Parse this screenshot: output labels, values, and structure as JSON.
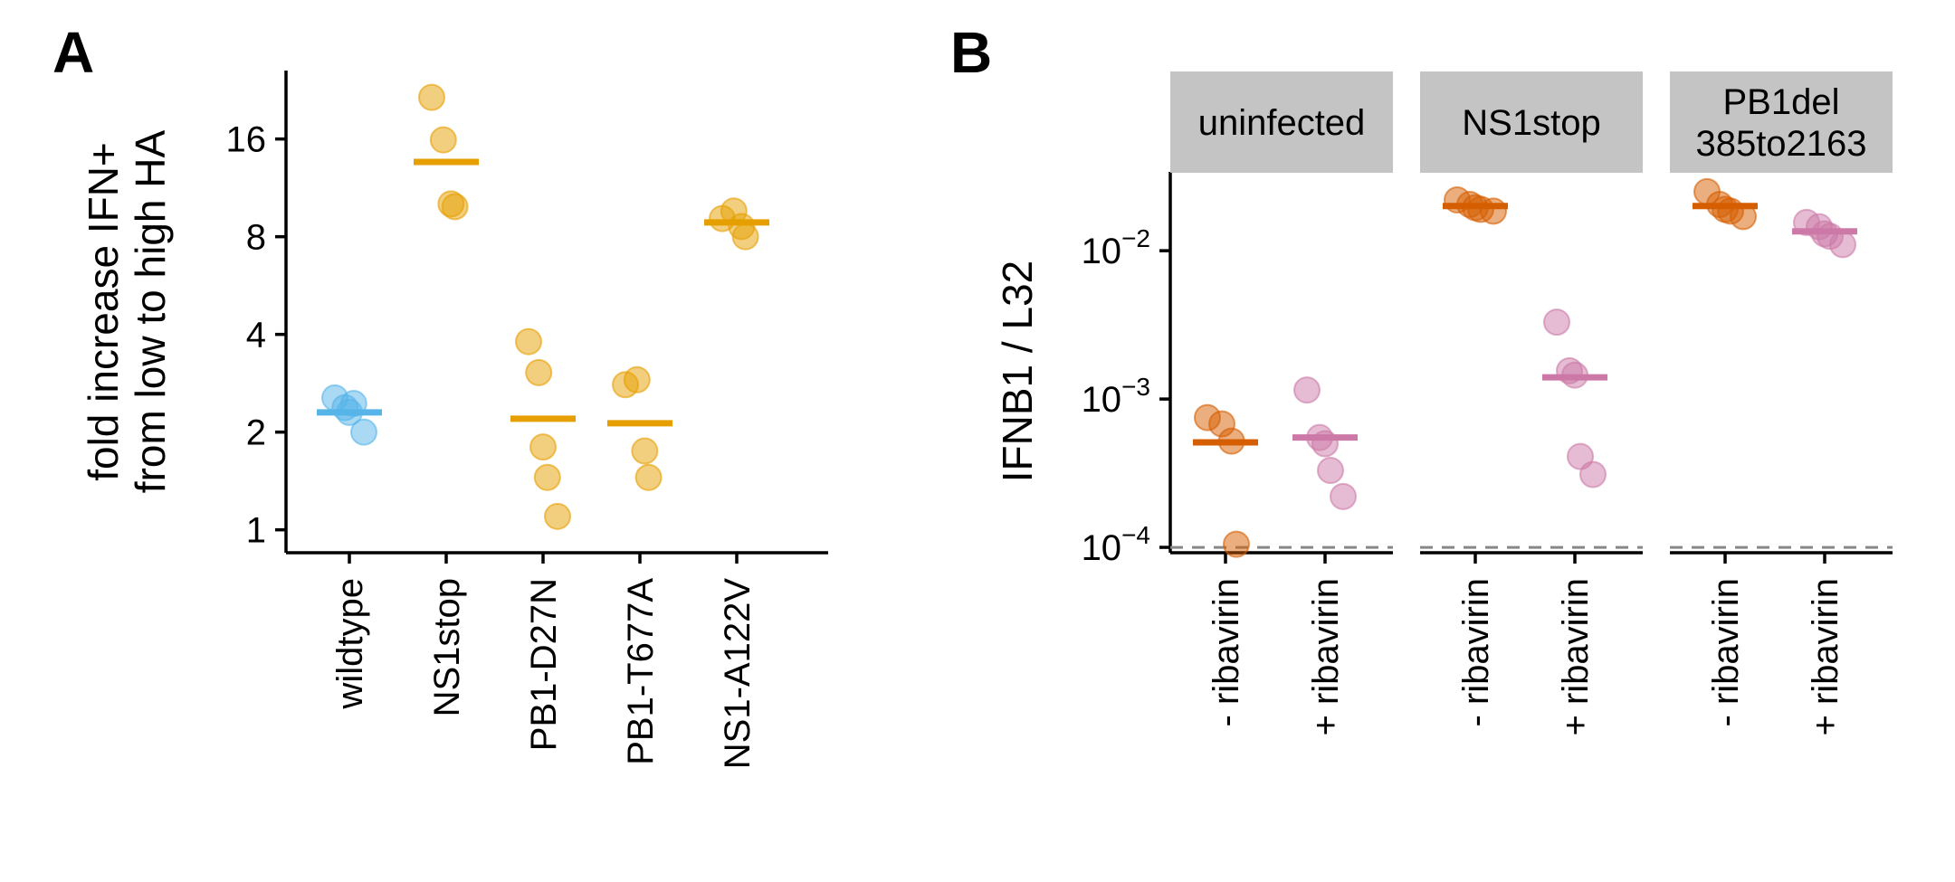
{
  "panels": {
    "A": {
      "letter": "A"
    },
    "B": {
      "letter": "B"
    }
  },
  "colors": {
    "wildtype": "#56B4E9",
    "mutant": "#E69F00",
    "minus_ribavirin": "#D55E00",
    "plus_ribavirin": "#CC79A7",
    "strip_bg": "#C4C4C4",
    "dashed_limit": "#888888"
  },
  "chart_data": [
    {
      "panel": "A",
      "type": "scatter",
      "ylabel": "fold increase IFN+\nfrom low to high HA",
      "yscale": "log2",
      "ylim": [
        0.85,
        26
      ],
      "yticks": [
        1,
        2,
        4,
        8,
        16
      ],
      "ytick_labels": [
        "1",
        "2",
        "4",
        "8",
        "16"
      ],
      "categories": [
        "wildtype",
        "NS1stop",
        "PB1-D27N",
        "PB1-T677A",
        "NS1-A122V"
      ],
      "points": [
        {
          "category": "wildtype",
          "values": [
            2.55,
            2.38,
            2.3,
            2.45,
            2.0
          ],
          "mean": 2.3
        },
        {
          "category": "NS1stop",
          "values": [
            21.5,
            15.9,
            10.1,
            9.9
          ],
          "mean": 13.6
        },
        {
          "category": "PB1-D27N",
          "values": [
            3.8,
            3.05,
            1.8,
            1.45,
            1.1
          ],
          "mean": 2.2
        },
        {
          "category": "PB1-T677A",
          "values": [
            2.8,
            2.9,
            1.75,
            1.45
          ],
          "mean": 2.13
        },
        {
          "category": "NS1-A122V",
          "values": [
            9.1,
            9.6,
            8.6,
            8.0
          ],
          "mean": 8.85
        }
      ]
    },
    {
      "panel": "B",
      "type": "scatter",
      "ylabel": "IFNB1 / L32",
      "yscale": "log10",
      "ylim": [
        9.2e-05,
        0.034
      ],
      "yticks": [
        0.0001,
        0.001,
        0.01
      ],
      "ytick_labels": [
        {
          "base": "10",
          "exp": "−4"
        },
        {
          "base": "10",
          "exp": "−3"
        },
        {
          "base": "10",
          "exp": "−2"
        }
      ],
      "detection_limit": 0.0001,
      "categories": [
        "- ribavirin",
        "+ ribavirin"
      ],
      "facets": [
        {
          "strip": [
            "uninfected"
          ],
          "groups": [
            {
              "category": "- ribavirin",
              "values": [
                0.00075,
                0.00068,
                0.00052,
                0.000105
              ],
              "mean": 0.00051
            },
            {
              "category": "+ ribavirin",
              "values": [
                0.00115,
                0.00055,
                0.0005,
                0.00033,
                0.00022
              ],
              "mean": 0.00055
            }
          ]
        },
        {
          "strip": [
            "NS1stop"
          ],
          "groups": [
            {
              "category": "- ribavirin",
              "values": [
                0.022,
                0.0205,
                0.0195,
                0.019,
                0.0185
              ],
              "mean": 0.02
            },
            {
              "category": "+ ribavirin",
              "values": [
                0.0033,
                0.00155,
                0.00145,
                0.00041,
                0.00031
              ],
              "mean": 0.0014
            }
          ]
        },
        {
          "strip": [
            "PB1del",
            "385to2163"
          ],
          "groups": [
            {
              "category": "- ribavirin",
              "values": [
                0.025,
                0.0205,
                0.019,
                0.0185,
                0.017
              ],
              "mean": 0.02
            },
            {
              "category": "+ ribavirin",
              "values": [
                0.0155,
                0.0145,
                0.013,
                0.0125,
                0.011
              ],
              "mean": 0.0135
            }
          ]
        }
      ]
    }
  ]
}
